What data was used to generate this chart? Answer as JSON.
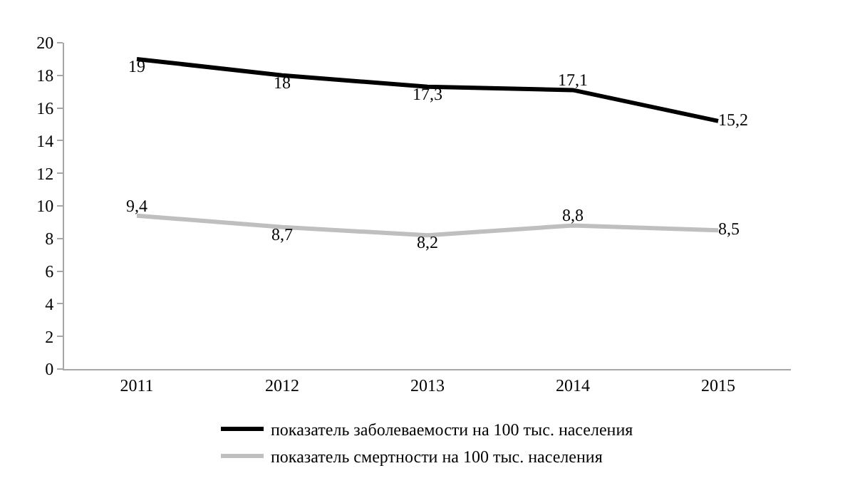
{
  "chart_data": {
    "type": "line",
    "categories": [
      "2011",
      "2012",
      "2013",
      "2014",
      "2015"
    ],
    "series": [
      {
        "name": "показатель заболеваемости на 100 тыс. населения",
        "color": "#000000",
        "values": [
          19,
          18,
          17.3,
          17.1,
          15.2
        ],
        "value_labels": [
          "19",
          "18",
          "17,3",
          "17,1",
          "15,2"
        ]
      },
      {
        "name": "показатель смертности на 100 тыс. населения",
        "color": "#bfbfbf",
        "values": [
          9.4,
          8.7,
          8.2,
          8.8,
          8.5
        ],
        "value_labels": [
          "9,4",
          "8,7",
          "8,2",
          "8,8",
          "8,5"
        ]
      }
    ],
    "ylim": [
      0,
      20
    ],
    "yticks": [
      0,
      2,
      4,
      6,
      8,
      10,
      12,
      14,
      16,
      18,
      20
    ],
    "legend": "bottom",
    "marker": "none",
    "line_style": "solid"
  }
}
